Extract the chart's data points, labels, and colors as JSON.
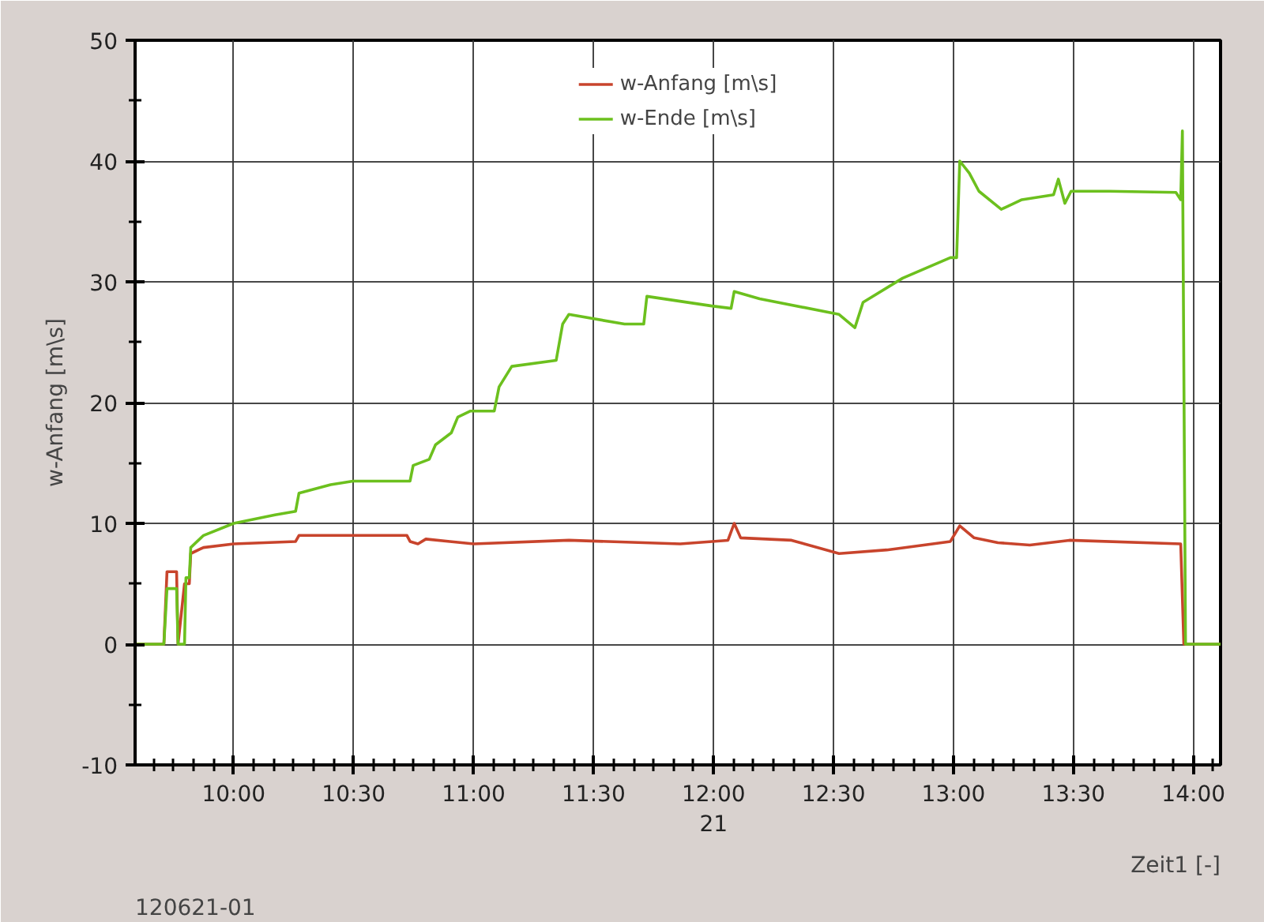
{
  "chart_data": {
    "type": "line",
    "ylabel": "w-Anfang [m\\s]",
    "xlabel": "Zeit1 [-]",
    "annotations": [
      "120621-01"
    ],
    "xlim": [
      9.589,
      14.113
    ],
    "ylim": [
      -10,
      50
    ],
    "xticks": [
      {
        "value": 9.6667,
        "label": null
      },
      {
        "value": 9.75,
        "label": null
      },
      {
        "value": 9.8333,
        "label": null
      },
      {
        "value": 9.9167,
        "label": null
      },
      {
        "value": 10,
        "label": "10:00"
      },
      {
        "value": 10.0833,
        "label": null
      },
      {
        "value": 10.1667,
        "label": null
      },
      {
        "value": 10.25,
        "label": null
      },
      {
        "value": 10.3333,
        "label": null
      },
      {
        "value": 10.4167,
        "label": null
      },
      {
        "value": 10.5,
        "label": "10:30"
      },
      {
        "value": 10.5833,
        "label": null
      },
      {
        "value": 10.6667,
        "label": null
      },
      {
        "value": 10.75,
        "label": null
      },
      {
        "value": 10.8333,
        "label": null
      },
      {
        "value": 10.9167,
        "label": null
      },
      {
        "value": 11,
        "label": "11:00"
      },
      {
        "value": 11.0833,
        "label": null
      },
      {
        "value": 11.1667,
        "label": null
      },
      {
        "value": 11.25,
        "label": null
      },
      {
        "value": 11.3333,
        "label": null
      },
      {
        "value": 11.4167,
        "label": null
      },
      {
        "value": 11.5,
        "label": "11:30"
      },
      {
        "value": 11.5833,
        "label": null
      },
      {
        "value": 11.6667,
        "label": null
      },
      {
        "value": 11.75,
        "label": null
      },
      {
        "value": 11.8333,
        "label": null
      },
      {
        "value": 11.9167,
        "label": null
      },
      {
        "value": 12,
        "label": "12:00\n21"
      },
      {
        "value": 12.0833,
        "label": null
      },
      {
        "value": 12.1667,
        "label": null
      },
      {
        "value": 12.25,
        "label": null
      },
      {
        "value": 12.3333,
        "label": null
      },
      {
        "value": 12.4167,
        "label": null
      },
      {
        "value": 12.5,
        "label": "12:30"
      },
      {
        "value": 12.5833,
        "label": null
      },
      {
        "value": 12.6667,
        "label": null
      },
      {
        "value": 12.75,
        "label": null
      },
      {
        "value": 12.8333,
        "label": null
      },
      {
        "value": 12.9167,
        "label": null
      },
      {
        "value": 13,
        "label": "13:00"
      },
      {
        "value": 13.0833,
        "label": null
      },
      {
        "value": 13.1667,
        "label": null
      },
      {
        "value": 13.25,
        "label": null
      },
      {
        "value": 13.3333,
        "label": null
      },
      {
        "value": 13.4167,
        "label": null
      },
      {
        "value": 13.5,
        "label": "13:30"
      },
      {
        "value": 13.5833,
        "label": null
      },
      {
        "value": 13.6667,
        "label": null
      },
      {
        "value": 13.75,
        "label": null
      },
      {
        "value": 13.8333,
        "label": null
      },
      {
        "value": 13.9167,
        "label": null
      },
      {
        "value": 14,
        "label": "14:00"
      },
      {
        "value": 14.0833,
        "label": null
      }
    ],
    "yticks": [
      -10,
      {
        "value": -5,
        "label": null
      },
      0,
      {
        "value": 5,
        "label": null
      },
      10,
      {
        "value": 15,
        "label": null
      },
      20,
      {
        "value": 25,
        "label": null
      },
      30,
      {
        "value": 35,
        "label": null
      },
      40,
      {
        "value": 45,
        "label": null
      },
      50
    ],
    "grid": true,
    "legend": "top",
    "marker": "none",
    "line_style": "solid",
    "series": [
      {
        "name": "w-Anfang [m\\s]",
        "color": "#c8442c",
        "x": [
          9.589,
          9.709,
          9.722,
          9.762,
          9.768,
          9.795,
          9.815,
          9.821,
          9.874,
          10.0,
          10.258,
          10.272,
          10.497,
          10.722,
          10.735,
          10.768,
          10.801,
          10.901,
          11.0,
          11.397,
          11.861,
          12.06,
          12.086,
          12.113,
          12.325,
          12.523,
          12.722,
          12.987,
          13.026,
          13.086,
          13.185,
          13.318,
          13.483,
          13.947,
          13.96,
          14.113
        ],
        "values": [
          0,
          0,
          6,
          6,
          0,
          5,
          5,
          7.5,
          8,
          8.3,
          8.5,
          9,
          9,
          9,
          8.5,
          8.3,
          8.7,
          8.5,
          8.3,
          8.6,
          8.3,
          8.6,
          10,
          8.8,
          8.6,
          7.5,
          7.8,
          8.5,
          9.8,
          8.8,
          8.4,
          8.2,
          8.6,
          8.3,
          0,
          0
        ]
      },
      {
        "name": "w-Ende [m\\s]",
        "color": "#6cc01e",
        "x": [
          9.589,
          9.709,
          9.722,
          9.762,
          9.768,
          9.795,
          9.801,
          9.815,
          9.821,
          9.874,
          10.0,
          10.172,
          10.258,
          10.272,
          10.404,
          10.497,
          10.735,
          10.748,
          10.815,
          10.841,
          10.907,
          10.934,
          10.987,
          11.086,
          11.106,
          11.159,
          11.344,
          11.371,
          11.397,
          11.629,
          11.709,
          11.722,
          11.993,
          12.073,
          12.086,
          12.192,
          12.523,
          12.589,
          12.623,
          12.788,
          12.987,
          13.013,
          13.026,
          13.066,
          13.106,
          13.199,
          13.285,
          13.417,
          13.437,
          13.464,
          13.49,
          13.649,
          13.927,
          13.947,
          13.954,
          13.967,
          14.113
        ],
        "values": [
          0,
          0,
          4.6,
          4.6,
          0,
          0,
          5.5,
          5.5,
          8,
          9,
          10,
          10.7,
          11,
          12.5,
          13.2,
          13.5,
          13.5,
          14.8,
          15.3,
          16.5,
          17.5,
          18.8,
          19.3,
          19.3,
          21.3,
          23,
          23.5,
          26.5,
          27.3,
          26.5,
          26.5,
          28.8,
          28,
          27.8,
          29.2,
          28.6,
          27.3,
          26.2,
          28.3,
          30.3,
          32,
          32,
          40,
          39,
          37.5,
          36,
          36.8,
          37.2,
          38.5,
          36.5,
          37.5,
          37.5,
          37.4,
          36.8,
          42.5,
          0,
          0
        ]
      }
    ]
  }
}
